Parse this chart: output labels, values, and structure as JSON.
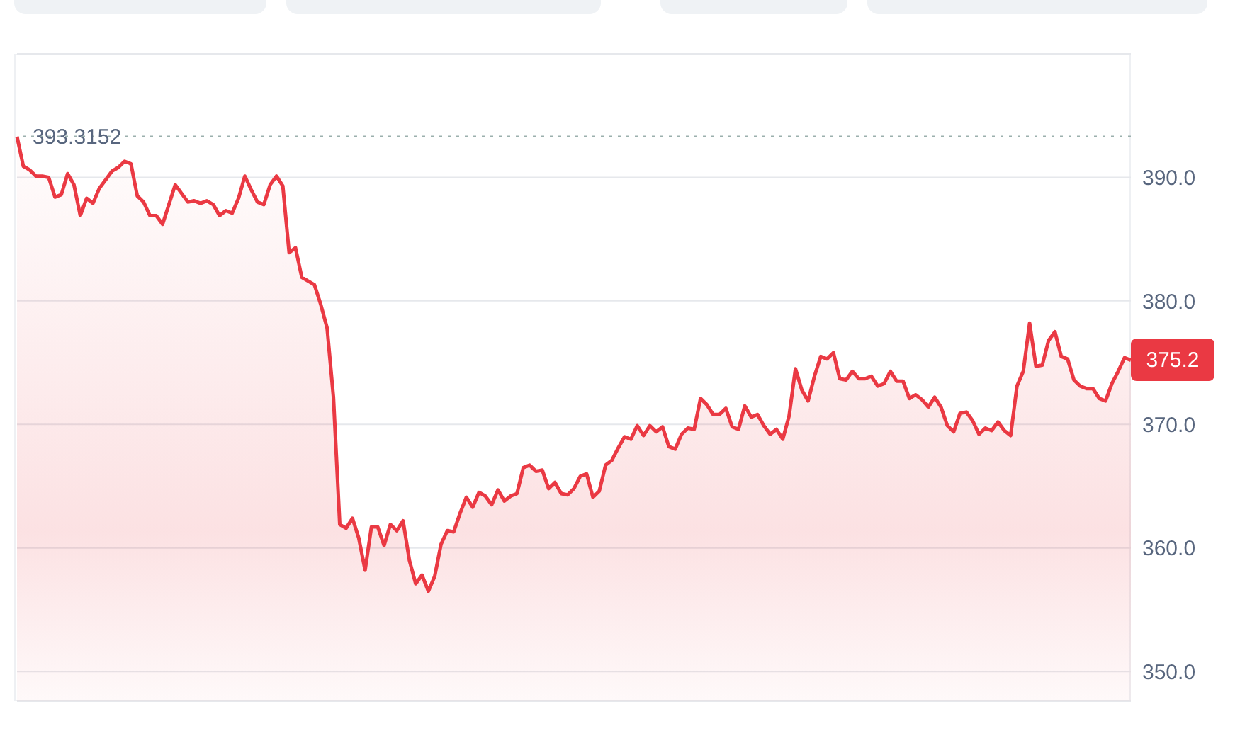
{
  "chart_data": {
    "type": "area",
    "categories": [
      null,
      null,
      null,
      null,
      null,
      null,
      null,
      null,
      null,
      null,
      null,
      null,
      null,
      null,
      null,
      null,
      null,
      null,
      null,
      null,
      null,
      null,
      null,
      null,
      null,
      null,
      null,
      null,
      null,
      null,
      null,
      null,
      null,
      null,
      null,
      null,
      null,
      null,
      null,
      null,
      null,
      null,
      null,
      null,
      null,
      null,
      null,
      null,
      null,
      null,
      null,
      null,
      null,
      null,
      null,
      null,
      null,
      null,
      null,
      null,
      null,
      null,
      null,
      null,
      null,
      null,
      null,
      null,
      null,
      null,
      null,
      null,
      null,
      null,
      null,
      null,
      null,
      null,
      null,
      null,
      null,
      null,
      null,
      null,
      null,
      null,
      null,
      null,
      null,
      null,
      null,
      null,
      null,
      null,
      null,
      null,
      null,
      null,
      null,
      null,
      null,
      null,
      null,
      null,
      null,
      null,
      null,
      null,
      null,
      null,
      null,
      null,
      null,
      null,
      null,
      null,
      null,
      null,
      null,
      null,
      null,
      null,
      null,
      null,
      null,
      null,
      null,
      null,
      null,
      null,
      null,
      null,
      null,
      null,
      null,
      null,
      null,
      null,
      null,
      null,
      null,
      null,
      null,
      null,
      null,
      null,
      null,
      null,
      null,
      null,
      null,
      null,
      null,
      null,
      null,
      null,
      null,
      null,
      null,
      null,
      null,
      null,
      null,
      null,
      null,
      null,
      null,
      null,
      null,
      null,
      null,
      null,
      null,
      null,
      null,
      null,
      null
    ],
    "series": [
      {
        "color": "#ea3943",
        "values": [
          393.3,
          390.9,
          390.6,
          390.1,
          390.1,
          390.0,
          388.4,
          388.6,
          390.3,
          389.4,
          386.9,
          388.3,
          387.9,
          389.1,
          389.8,
          390.5,
          390.8,
          391.3,
          391.1,
          388.5,
          388.0,
          386.9,
          386.9,
          386.2,
          387.8,
          389.4,
          388.7,
          388.0,
          388.1,
          387.9,
          388.1,
          387.8,
          386.9,
          387.3,
          387.1,
          388.3,
          390.1,
          389.0,
          388.0,
          387.8,
          389.4,
          390.1,
          389.3,
          383.9,
          384.3,
          381.9,
          381.6,
          381.3,
          379.7,
          377.8,
          372.2,
          361.9,
          361.6,
          362.4,
          360.8,
          358.2,
          361.7,
          361.7,
          360.2,
          361.9,
          361.4,
          362.2,
          359.0,
          357.1,
          357.8,
          356.5,
          357.7,
          360.3,
          361.4,
          361.3,
          362.8,
          364.1,
          363.3,
          364.5,
          364.2,
          363.5,
          364.7,
          363.8,
          364.2,
          364.4,
          366.5,
          366.7,
          366.2,
          366.3,
          364.8,
          365.3,
          364.4,
          364.3,
          364.8,
          365.8,
          366.0,
          364.1,
          364.6,
          366.7,
          367.1,
          368.1,
          369.0,
          368.8,
          369.9,
          369.1,
          369.9,
          369.4,
          369.8,
          368.2,
          368.0,
          369.2,
          369.7,
          369.6,
          372.1,
          371.6,
          370.8,
          370.8,
          371.3,
          369.8,
          369.6,
          371.5,
          370.6,
          370.8,
          369.9,
          369.2,
          369.6,
          368.8,
          370.7,
          374.5,
          372.8,
          371.9,
          373.9,
          375.5,
          375.3,
          375.8,
          373.7,
          373.6,
          374.3,
          373.7,
          373.7,
          373.9,
          373.1,
          373.3,
          374.3,
          373.5,
          373.5,
          372.1,
          372.4,
          372.0,
          371.4,
          372.2,
          371.4,
          369.9,
          369.4,
          370.9,
          371.0,
          370.3,
          369.2,
          369.7,
          369.5,
          370.2,
          369.5,
          369.1,
          373.1,
          374.3,
          378.2,
          374.7,
          374.8,
          376.8,
          377.5,
          375.5,
          375.3,
          373.6,
          373.1,
          372.9,
          372.9,
          372.1,
          371.9,
          373.3,
          374.3,
          375.4,
          375.2
        ]
      }
    ],
    "ylim": [
      347.6,
      400
    ],
    "yticks": [
      {
        "value": 350,
        "label": "350.0"
      },
      {
        "value": 360,
        "label": "360.0"
      },
      {
        "value": 370,
        "label": "370.0"
      },
      {
        "value": 380,
        "label": "380.0"
      },
      {
        "value": 390,
        "label": "390.0"
      }
    ],
    "grid": "y",
    "ref_lines": [
      {
        "axis": "y",
        "value": 393.3152,
        "label": "393.3152",
        "color": "#9bb0ad",
        "line_style": "dotted"
      }
    ],
    "annotations": [
      "375.2"
    ]
  }
}
